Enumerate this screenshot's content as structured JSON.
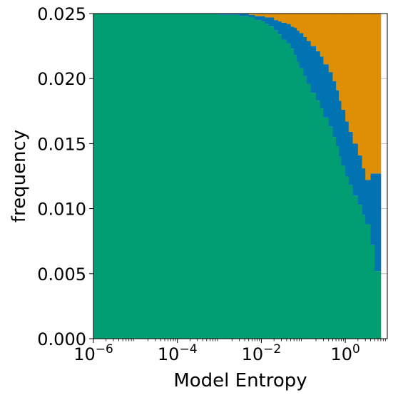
{
  "chart_data": {
    "type": "bar",
    "stacked": true,
    "xlabel": "Model Entropy",
    "ylabel": "frequency",
    "xscale": "log",
    "xlim": [
      1e-06,
      10
    ],
    "ylim": [
      0,
      0.025
    ],
    "grid": true,
    "x_ticks": [
      {
        "value": 1e-06,
        "base": "10",
        "exp": "−6"
      },
      {
        "value": 0.0001,
        "base": "10",
        "exp": "−4"
      },
      {
        "value": 0.01,
        "base": "10",
        "exp": "−2"
      },
      {
        "value": 1,
        "base": "10",
        "exp": "0"
      }
    ],
    "y_ticks": [
      {
        "value": 0.0,
        "label": "0.000"
      },
      {
        "value": 0.005,
        "label": "0.005"
      },
      {
        "value": 0.01,
        "label": "0.010"
      },
      {
        "value": 0.015,
        "label": "0.015"
      },
      {
        "value": 0.02,
        "label": "0.020"
      },
      {
        "value": 0.025,
        "label": "0.025"
      }
    ],
    "bin_edges": [
      1e-06,
      0.001,
      0.003,
      0.005,
      0.007,
      0.01,
      0.012,
      0.015,
      0.02,
      0.025,
      0.03,
      0.04,
      0.05,
      0.06,
      0.07,
      0.08,
      0.1,
      0.12,
      0.15,
      0.2,
      0.25,
      0.3,
      0.4,
      0.5,
      0.6,
      0.7,
      0.8,
      1.0,
      1.2,
      1.5,
      2.0,
      2.5,
      3.0,
      4.0,
      5.0,
      7.0
    ],
    "series": [
      {
        "color": "#029E73",
        "values": [
          0.025,
          0.0249,
          0.0248,
          0.0247,
          0.0245,
          0.0244,
          0.0242,
          0.024,
          0.0237,
          0.0234,
          0.023,
          0.0227,
          0.0223,
          0.0218,
          0.0213,
          0.0208,
          0.0202,
          0.0196,
          0.0189,
          0.0183,
          0.0177,
          0.017,
          0.0163,
          0.0155,
          0.0148,
          0.014,
          0.0133,
          0.0125,
          0.0118,
          0.011,
          0.0103,
          0.0095,
          0.0088,
          0.0072,
          0.0052
        ]
      },
      {
        "color": "#0173B2",
        "values": [
          0.0,
          0.0001,
          0.0002,
          0.0002,
          0.0003,
          0.0004,
          0.0005,
          0.0007,
          0.0008,
          0.001,
          0.0013,
          0.0015,
          0.0017,
          0.0021,
          0.0024,
          0.0027,
          0.003,
          0.0033,
          0.0036,
          0.0038,
          0.004,
          0.0041,
          0.0042,
          0.0043,
          0.0043,
          0.0043,
          0.0043,
          0.0042,
          0.0041,
          0.004,
          0.0038,
          0.0036,
          0.0034,
          0.0055,
          0.0075
        ]
      },
      {
        "color": "#DE8F05",
        "values": [
          0.0,
          0.0,
          0.0,
          0.0001,
          0.0002,
          0.0002,
          0.0003,
          0.0003,
          0.0005,
          0.0006,
          0.0007,
          0.0008,
          0.001,
          0.0011,
          0.0013,
          0.0015,
          0.0018,
          0.0021,
          0.0025,
          0.0029,
          0.0033,
          0.0039,
          0.0045,
          0.0052,
          0.0059,
          0.0067,
          0.0074,
          0.0083,
          0.0091,
          0.01,
          0.0109,
          0.0119,
          0.0128,
          0.0123,
          0.0123
        ]
      }
    ]
  }
}
